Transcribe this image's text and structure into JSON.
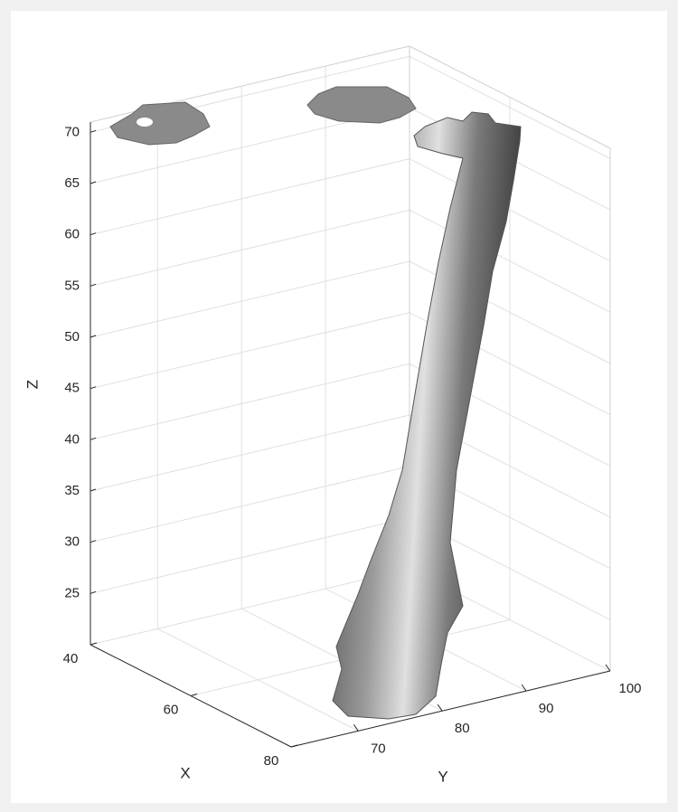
{
  "chart_data": {
    "type": "surface",
    "xlabel": "X",
    "ylabel": "Y",
    "zlabel": "Z",
    "xlim": [
      40,
      80
    ],
    "xticks": [
      40,
      60,
      80
    ],
    "ylim": [
      62,
      100
    ],
    "yticks": [
      70,
      80,
      90,
      100
    ],
    "zlim": [
      20,
      71
    ],
    "zticks": [
      25,
      30,
      35,
      40,
      45,
      50,
      55,
      60,
      65,
      70
    ],
    "grid": true,
    "color": "#8c8c8c"
  }
}
